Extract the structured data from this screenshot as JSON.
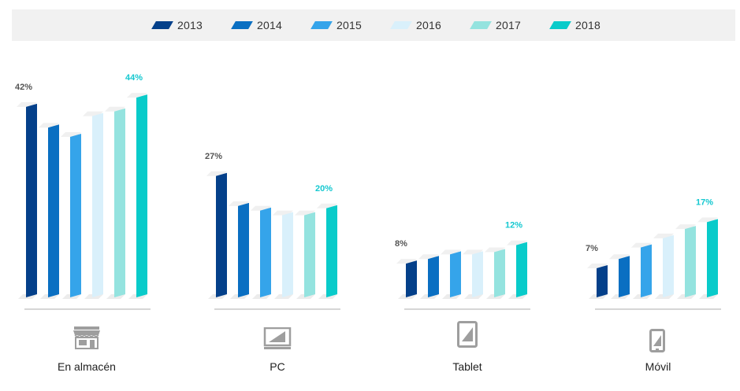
{
  "colors": {
    "2013": "#04408a",
    "2014": "#0a6fc2",
    "2015": "#35a4ea",
    "2016": "#d9f0fb",
    "2017": "#94e3df",
    "2018": "#09cbca",
    "highlight_label": "#15c8d0",
    "base_label": "#555555",
    "baseline": "#bdbdbd",
    "icon": "#9e9e9e"
  },
  "legend": [
    "2013",
    "2014",
    "2015",
    "2016",
    "2017",
    "2018"
  ],
  "chart_data": {
    "type": "bar",
    "title": "",
    "xlabel": "",
    "ylabel": "",
    "categories": [
      "En almacén",
      "PC",
      "Tablet",
      "Móvil"
    ],
    "series": [
      {
        "name": "2013",
        "values": [
          42,
          27,
          8,
          7
        ]
      },
      {
        "name": "2014",
        "values": [
          37.5,
          20.5,
          9,
          9
        ]
      },
      {
        "name": "2015",
        "values": [
          35.5,
          19.5,
          10,
          11.5
        ]
      },
      {
        "name": "2016",
        "values": [
          40,
          18.5,
          10,
          13.5
        ]
      },
      {
        "name": "2017",
        "values": [
          41,
          18.5,
          10.5,
          15.5
        ]
      },
      {
        "name": "2018",
        "values": [
          44,
          20,
          12,
          17
        ]
      }
    ],
    "data_labels": [
      {
        "category": "En almacén",
        "first": "42%",
        "last": "44%"
      },
      {
        "category": "PC",
        "first": "27%",
        "last": "20%"
      },
      {
        "category": "Tablet",
        "first": "8%",
        "last": "12%"
      },
      {
        "category": "Móvil",
        "first": "7%",
        "last": "17%"
      }
    ],
    "icons": [
      "store-icon",
      "pc-icon",
      "tablet-icon",
      "mobile-icon"
    ],
    "legend_position": "top",
    "grid": false
  }
}
